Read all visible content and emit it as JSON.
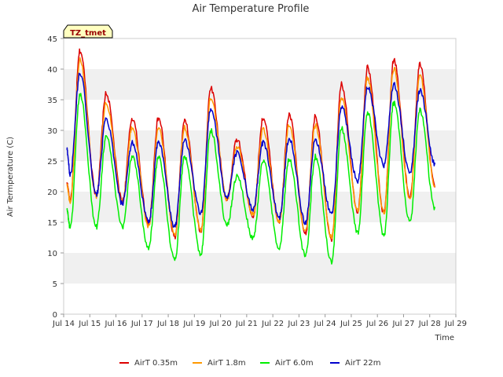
{
  "chart_data": {
    "type": "line",
    "title": "Air Temperature Profile",
    "xlabel": "Time",
    "ylabel": "Air Termperature (C)",
    "site_label": "TZ_tmet",
    "x_unit": "days (July)",
    "xlim": [
      14,
      29
    ],
    "ylim": [
      0,
      45
    ],
    "x_ticks": [
      "Jul 14",
      "Jul 15",
      "Jul 16",
      "Jul 17",
      "Jul 18",
      "Jul 19",
      "Jul 20",
      "Jul 21",
      "Jul 22",
      "Jul 23",
      "Jul 24",
      "Jul 25",
      "Jul 26",
      "Jul 27",
      "Jul 28",
      "Jul 29"
    ],
    "y_ticks": [
      "0",
      "5",
      "10",
      "15",
      "20",
      "25",
      "30",
      "35",
      "40",
      "45"
    ],
    "grid": "alternating horizontal bands",
    "legend_position": "bottom",
    "daily_cycle_fields": [
      "day",
      "min_temp",
      "max_temp"
    ],
    "series": [
      {
        "name": "AirT 0.35m",
        "color": "#dd0000",
        "start": 21.3,
        "end": 21.0,
        "daily_cycles": [
          [
            14,
            18.5,
            43.0
          ],
          [
            15,
            19.5,
            36.0
          ],
          [
            16,
            18.5,
            32.0
          ],
          [
            17,
            14.5,
            32.0
          ],
          [
            18,
            12.5,
            31.5
          ],
          [
            19,
            13.5,
            37.0
          ],
          [
            20,
            18.8,
            28.5
          ],
          [
            21,
            16.0,
            32.0
          ],
          [
            22,
            15.0,
            32.5
          ],
          [
            23,
            13.0,
            32.3
          ],
          [
            24,
            12.0,
            37.5
          ],
          [
            25,
            16.8,
            40.3
          ],
          [
            26,
            16.5,
            41.5
          ],
          [
            27,
            19.0,
            40.8
          ]
        ]
      },
      {
        "name": "AirT 1.8m",
        "color": "#ff9900",
        "start": 21.0,
        "end": 20.8,
        "daily_cycles": [
          [
            14,
            18.3,
            41.5
          ],
          [
            15,
            19.3,
            34.5
          ],
          [
            16,
            18.3,
            30.5
          ],
          [
            17,
            14.3,
            30.5
          ],
          [
            18,
            12.8,
            30.5
          ],
          [
            19,
            13.8,
            35.5
          ],
          [
            20,
            18.8,
            27.3
          ],
          [
            21,
            16.2,
            30.2
          ],
          [
            22,
            15.2,
            31.0
          ],
          [
            23,
            13.3,
            30.8
          ],
          [
            24,
            12.5,
            35.5
          ],
          [
            25,
            16.8,
            38.5
          ],
          [
            26,
            16.5,
            40.0
          ],
          [
            27,
            18.8,
            39.0
          ]
        ]
      },
      {
        "name": "AirT 6.0m",
        "color": "#00ee00",
        "start": 17.0,
        "end": 17.2,
        "daily_cycles": [
          [
            14,
            14.0,
            35.8
          ],
          [
            15,
            14.2,
            29.0
          ],
          [
            16,
            14.2,
            25.8
          ],
          [
            17,
            10.8,
            25.5
          ],
          [
            18,
            8.8,
            25.8
          ],
          [
            19,
            9.8,
            30.0
          ],
          [
            20,
            14.5,
            22.5
          ],
          [
            21,
            12.3,
            25.0
          ],
          [
            22,
            10.8,
            25.3
          ],
          [
            23,
            9.5,
            25.7
          ],
          [
            24,
            8.5,
            30.3
          ],
          [
            25,
            13.2,
            33.0
          ],
          [
            26,
            12.8,
            34.5
          ],
          [
            27,
            15.0,
            33.3
          ]
        ]
      },
      {
        "name": "AirT 22m",
        "color": "#0000cc",
        "start": 26.8,
        "end": 24.5,
        "daily_cycles": [
          [
            14,
            22.8,
            39.3
          ],
          [
            15,
            19.5,
            31.8
          ],
          [
            16,
            18.0,
            28.0
          ],
          [
            17,
            15.0,
            28.0
          ],
          [
            18,
            14.3,
            28.5
          ],
          [
            19,
            16.5,
            33.5
          ],
          [
            20,
            19.0,
            26.3
          ],
          [
            21,
            17.0,
            28.0
          ],
          [
            22,
            15.8,
            28.7
          ],
          [
            23,
            15.0,
            28.5
          ],
          [
            24,
            16.3,
            33.8
          ],
          [
            25,
            21.8,
            37.0
          ],
          [
            26,
            24.3,
            37.5
          ],
          [
            27,
            23.0,
            36.5
          ]
        ]
      }
    ]
  }
}
